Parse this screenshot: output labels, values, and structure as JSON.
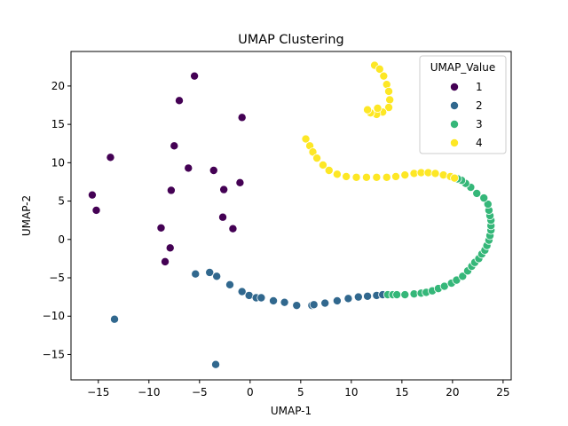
{
  "chart_data": {
    "type": "scatter",
    "title": "UMAP Clustering",
    "xlabel": "UMAP-1",
    "ylabel": "UMAP-2",
    "xlim": [
      -17.7,
      25.8
    ],
    "ylim": [
      -18.3,
      24.5
    ],
    "xticks": [
      -15,
      -10,
      -5,
      0,
      5,
      10,
      15,
      20,
      25
    ],
    "yticks": [
      -15,
      -10,
      -5,
      0,
      5,
      10,
      15,
      20
    ],
    "grid": false,
    "legend": {
      "title": "UMAP_Value",
      "placement": "top-right"
    },
    "series": [
      {
        "name": "1",
        "color": "#440154",
        "points": [
          [
            -5.5,
            21.3
          ],
          [
            -7.0,
            18.1
          ],
          [
            -0.8,
            15.9
          ],
          [
            -7.5,
            12.2
          ],
          [
            -13.8,
            10.7
          ],
          [
            -6.1,
            9.3
          ],
          [
            -3.6,
            9.0
          ],
          [
            -1.0,
            7.4
          ],
          [
            -2.6,
            6.5
          ],
          [
            -7.8,
            6.4
          ],
          [
            -15.6,
            5.8
          ],
          [
            -15.2,
            3.8
          ],
          [
            -2.7,
            2.9
          ],
          [
            -8.8,
            1.5
          ],
          [
            -1.7,
            1.4
          ],
          [
            -7.9,
            -1.1
          ],
          [
            -8.4,
            -2.9
          ]
        ]
      },
      {
        "name": "2",
        "color": "#31688e",
        "points": [
          [
            -5.4,
            -4.5
          ],
          [
            -4.0,
            -4.3
          ],
          [
            -3.3,
            -4.8
          ],
          [
            -2.0,
            -5.9
          ],
          [
            -0.8,
            -6.8
          ],
          [
            -0.1,
            -7.3
          ],
          [
            0.6,
            -7.6
          ],
          [
            1.1,
            -7.6
          ],
          [
            2.3,
            -8.0
          ],
          [
            3.4,
            -8.2
          ],
          [
            4.6,
            -8.6
          ],
          [
            6.1,
            -8.6
          ],
          [
            6.3,
            -8.5
          ],
          [
            7.4,
            -8.3
          ],
          [
            8.6,
            -8.0
          ],
          [
            9.7,
            -7.7
          ],
          [
            10.7,
            -7.5
          ],
          [
            11.6,
            -7.4
          ],
          [
            12.5,
            -7.3
          ],
          [
            13.1,
            -7.2
          ],
          [
            -13.4,
            -10.4
          ],
          [
            -3.4,
            -16.3
          ]
        ]
      },
      {
        "name": "3",
        "color": "#35b779",
        "points": [
          [
            13.6,
            -7.2
          ],
          [
            14.1,
            -7.2
          ],
          [
            14.5,
            -7.2
          ],
          [
            15.3,
            -7.2
          ],
          [
            16.2,
            -7.1
          ],
          [
            16.9,
            -7.0
          ],
          [
            17.4,
            -6.9
          ],
          [
            18.0,
            -6.7
          ],
          [
            18.6,
            -6.4
          ],
          [
            19.2,
            -6.1
          ],
          [
            19.9,
            -5.7
          ],
          [
            20.4,
            -5.3
          ],
          [
            21.0,
            -4.8
          ],
          [
            21.5,
            -4.1
          ],
          [
            21.9,
            -3.5
          ],
          [
            22.2,
            -3.0
          ],
          [
            22.6,
            -2.5
          ],
          [
            22.9,
            -1.9
          ],
          [
            23.2,
            -1.4
          ],
          [
            23.4,
            -0.8
          ],
          [
            23.6,
            -0.1
          ],
          [
            23.7,
            0.5
          ],
          [
            23.8,
            1.2
          ],
          [
            23.8,
            1.8
          ],
          [
            23.8,
            2.5
          ],
          [
            23.7,
            3.1
          ],
          [
            23.6,
            3.8
          ],
          [
            23.5,
            4.6
          ],
          [
            23.1,
            5.4
          ],
          [
            22.4,
            6.0
          ],
          [
            21.8,
            6.8
          ],
          [
            21.3,
            7.3
          ],
          [
            20.9,
            7.7
          ],
          [
            20.5,
            7.9
          ]
        ]
      },
      {
        "name": "4",
        "color": "#fde725",
        "points": [
          [
            12.3,
            22.7
          ],
          [
            12.8,
            22.2
          ],
          [
            13.2,
            21.3
          ],
          [
            13.5,
            20.2
          ],
          [
            13.7,
            19.3
          ],
          [
            13.8,
            18.2
          ],
          [
            13.7,
            17.2
          ],
          [
            13.1,
            16.6
          ],
          [
            12.5,
            16.3
          ],
          [
            11.9,
            16.5
          ],
          [
            11.6,
            16.9
          ],
          [
            12.6,
            17.1
          ],
          [
            5.5,
            13.1
          ],
          [
            5.9,
            12.2
          ],
          [
            6.2,
            11.4
          ],
          [
            6.6,
            10.6
          ],
          [
            7.2,
            9.7
          ],
          [
            7.8,
            9.0
          ],
          [
            8.6,
            8.5
          ],
          [
            9.5,
            8.2
          ],
          [
            10.5,
            8.1
          ],
          [
            11.5,
            8.1
          ],
          [
            12.5,
            8.1
          ],
          [
            13.5,
            8.1
          ],
          [
            14.4,
            8.2
          ],
          [
            15.3,
            8.4
          ],
          [
            16.2,
            8.6
          ],
          [
            16.9,
            8.7
          ],
          [
            17.6,
            8.7
          ],
          [
            18.3,
            8.6
          ],
          [
            19.1,
            8.4
          ],
          [
            19.8,
            8.2
          ],
          [
            20.2,
            8.0
          ]
        ]
      }
    ]
  }
}
